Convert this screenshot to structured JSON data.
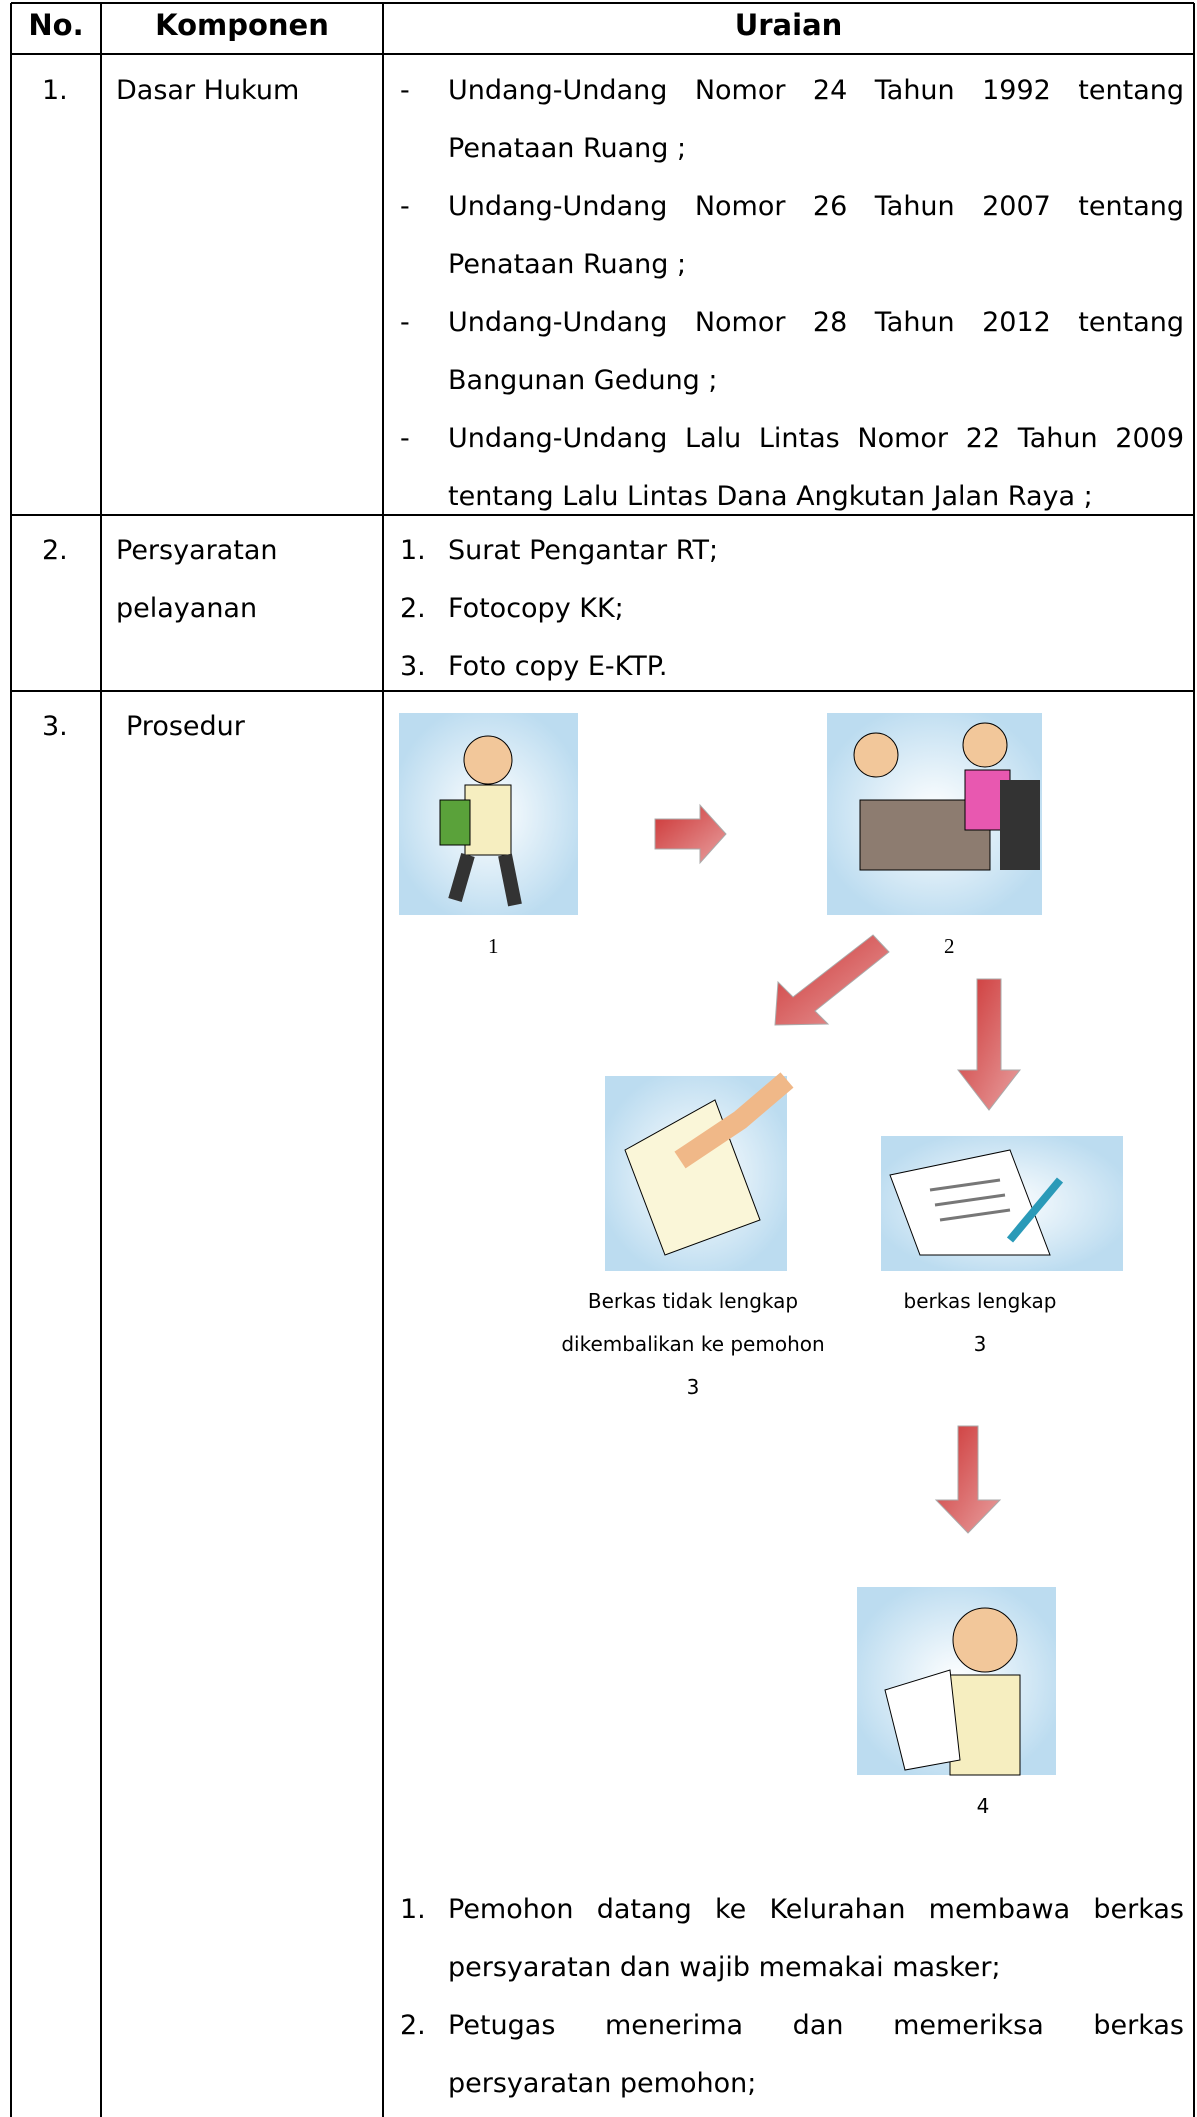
{
  "header": {
    "no": "No.",
    "component": "Komponen",
    "description": "Uraian"
  },
  "rows": [
    {
      "no": "1.",
      "component": "Dasar Hukum",
      "items": [
        {
          "marker": "-",
          "text": "Undang-Undang Nomor 24 Tahun 1992 tentang Penataan Ruang ;"
        },
        {
          "marker": "-",
          "text": "Undang-Undang Nomor 26 Tahun 2007 tentang Penataan Ruang ;"
        },
        {
          "marker": "-",
          "text": "Undang-Undang Nomor 28 Tahun 2012 tentang Bangunan Gedung ;"
        },
        {
          "marker": "-",
          "text": "Undang-Undang Lalu Lintas Nomor 22 Tahun 2009 tentang Lalu Lintas Dana Angkutan Jalan Raya ;"
        }
      ]
    },
    {
      "no": "2.",
      "component": "Persyaratan pelayanan",
      "items": [
        {
          "marker": "1.",
          "text": "Surat Pengantar RT;"
        },
        {
          "marker": "2.",
          "text": "Fotocopy KK;"
        },
        {
          "marker": "3.",
          "text": "Foto copy E-KTP."
        }
      ]
    },
    {
      "no": "3.",
      "component": "Prosedur",
      "diagram": {
        "step1": "1",
        "step2": "2",
        "incomplete": "Berkas tidak lengkap dikembalikan ke pemohon",
        "incomplete_no": "3",
        "complete": "berkas lengkap",
        "complete_no": "3",
        "step4": "4"
      },
      "items": [
        {
          "marker": "1.",
          "text": "Pemohon datang ke Kelurahan membawa berkas persyaratan dan wajib memakai masker;"
        },
        {
          "marker": "2.",
          "text": "Petugas menerima dan memeriksa berkas persyaratan pemohon;"
        }
      ]
    }
  ]
}
